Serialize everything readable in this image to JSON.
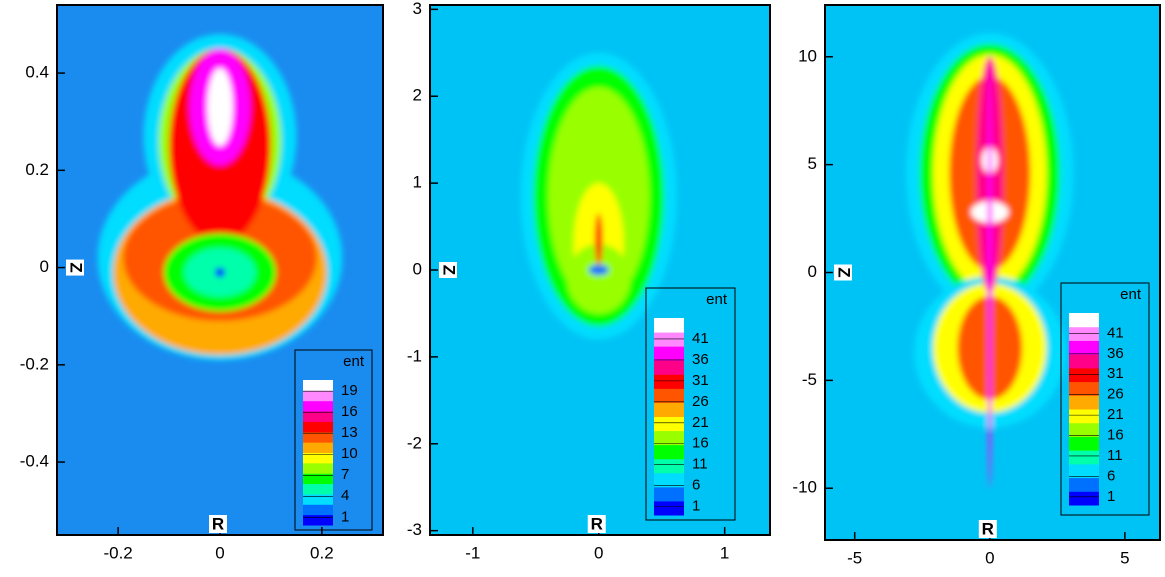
{
  "chart_data": [
    {
      "type": "contour",
      "xlabel": "R",
      "ylabel": "Z",
      "background": "#1a8cf0",
      "xlim": [
        -0.32,
        0.32
      ],
      "ylim": [
        -0.55,
        0.54
      ],
      "xticks": [
        {
          "value": -0.2,
          "label": "-0.2"
        },
        0,
        {
          "value": 0.2,
          "label": "0.2"
        }
      ],
      "yticks": [
        {
          "value": -0.4,
          "label": "-0.4"
        },
        {
          "value": -0.2,
          "label": "-0.2"
        },
        0,
        {
          "value": 0.2,
          "label": "0.2"
        },
        {
          "value": 0.4,
          "label": "0.4"
        }
      ],
      "colorbar": {
        "title": "ent",
        "clim": [
          -0.1,
          20.6
        ],
        "ticks": [
          1,
          4,
          7,
          10,
          13,
          16,
          19
        ]
      }
    },
    {
      "type": "contour",
      "xlabel": "R",
      "ylabel": "Z",
      "background": "#00c3f5",
      "xlim": [
        -1.34,
        1.36
      ],
      "ylim": [
        -3.05,
        3.05
      ],
      "xticks": [
        -1,
        0,
        1
      ],
      "yticks": [
        -3,
        -2,
        -1,
        0,
        1,
        2,
        3
      ],
      "colorbar": {
        "title": "ent",
        "clim": [
          -1,
          46
        ],
        "ticks": [
          1,
          6,
          11,
          16,
          21,
          26,
          31,
          36,
          41
        ]
      }
    },
    {
      "type": "contour",
      "xlabel": "R",
      "ylabel": "Z",
      "background": "#00c3f5",
      "xlim": [
        -6.1,
        6.3
      ],
      "ylim": [
        -12.4,
        12.4
      ],
      "xticks": [
        -5,
        0,
        5
      ],
      "yticks": [
        -10,
        -5,
        0,
        5,
        10
      ],
      "colorbar": {
        "title": "ent",
        "clim": [
          -1,
          46
        ],
        "ticks": [
          1,
          6,
          11,
          16,
          21,
          26,
          31,
          36,
          41
        ]
      }
    }
  ],
  "colormap": [
    "#0000ff",
    "#0070ff",
    "#00ddff",
    "#00ffaa",
    "#00ff00",
    "#99ff00",
    "#ffff00",
    "#ffaa00",
    "#ff5500",
    "#ff0000",
    "#ff0088",
    "#ff00ff",
    "#ff88ff",
    "#ffffff"
  ]
}
